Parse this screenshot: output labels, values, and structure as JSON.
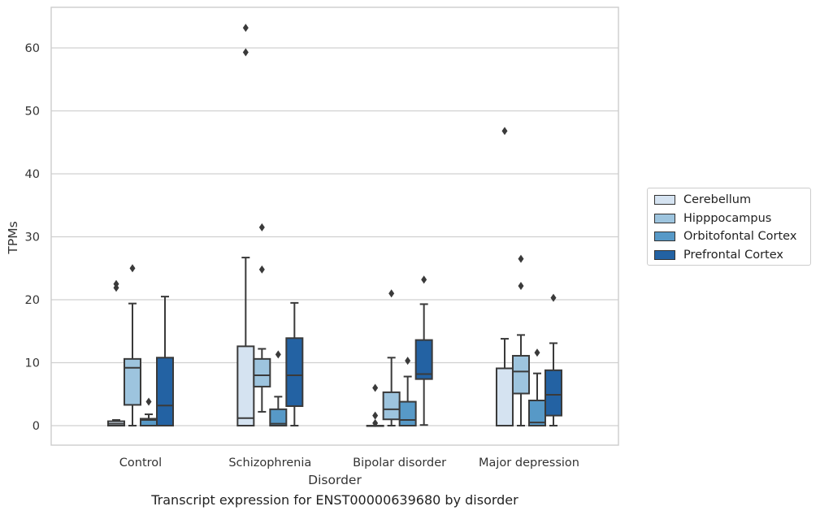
{
  "caption": "Transcript expression for ENST00000639680 by disorder",
  "chart_data": {
    "type": "box",
    "title": "",
    "xlabel": "Disorder",
    "ylabel": "TPMs",
    "ylim": [
      -3,
      66
    ],
    "yticks": [
      0,
      10,
      20,
      30,
      40,
      50,
      60
    ],
    "grid": "horizontal",
    "legend_position": "right",
    "categories": [
      "Control",
      "Schizophrenia",
      "Bipolar disorder",
      "Major depression"
    ],
    "series": [
      {
        "name": "Cerebellum",
        "color": "#d5e3f1",
        "boxes": [
          {
            "whislo": 0,
            "q1": 0,
            "med": 0.3,
            "q3": 0.7,
            "whishi": 0.9,
            "fliers": [
              21.9,
              22.5
            ]
          },
          {
            "whislo": 0,
            "q1": 0,
            "med": 1.2,
            "q3": 12.6,
            "whishi": 26.7,
            "fliers": [
              59.3,
              63.2
            ]
          },
          {
            "whislo": 0,
            "q1": 0,
            "med": 0,
            "q3": 0,
            "whishi": 0,
            "fliers": [
              0.4,
              1.6,
              6.0
            ]
          },
          {
            "whislo": 0,
            "q1": 0,
            "med": 0,
            "q3": 9.1,
            "whishi": 13.8,
            "fliers": [
              46.8
            ]
          }
        ]
      },
      {
        "name": "Hipppocampus",
        "color": "#9dc4de",
        "boxes": [
          {
            "whislo": 0,
            "q1": 3.3,
            "med": 9.2,
            "q3": 10.6,
            "whishi": 19.4,
            "fliers": [
              25.0
            ]
          },
          {
            "whislo": 2.2,
            "q1": 6.2,
            "med": 8.0,
            "q3": 10.6,
            "whishi": 12.2,
            "fliers": [
              24.8,
              31.5
            ]
          },
          {
            "whislo": 0,
            "q1": 1.0,
            "med": 2.6,
            "q3": 5.3,
            "whishi": 10.8,
            "fliers": [
              21.0
            ]
          },
          {
            "whislo": 0,
            "q1": 5.1,
            "med": 8.6,
            "q3": 11.1,
            "whishi": 14.4,
            "fliers": [
              22.2,
              26.5
            ]
          }
        ]
      },
      {
        "name": "Orbitofontal Cortex",
        "color": "#5799c7",
        "boxes": [
          {
            "whislo": 0,
            "q1": 0,
            "med": 0.9,
            "q3": 1.1,
            "whishi": 1.8,
            "fliers": [
              3.8
            ]
          },
          {
            "whislo": 0,
            "q1": 0,
            "med": 0.3,
            "q3": 2.6,
            "whishi": 4.6,
            "fliers": [
              11.3
            ]
          },
          {
            "whislo": 0,
            "q1": 0,
            "med": 0.9,
            "q3": 3.8,
            "whishi": 7.8,
            "fliers": [
              10.3
            ]
          },
          {
            "whislo": 0,
            "q1": 0,
            "med": 0.5,
            "q3": 4.0,
            "whishi": 8.3,
            "fliers": [
              11.6
            ]
          }
        ]
      },
      {
        "name": "Prefrontal Cortex",
        "color": "#2362a3",
        "boxes": [
          {
            "whislo": 0,
            "q1": 0,
            "med": 3.2,
            "q3": 10.8,
            "whishi": 20.5,
            "fliers": []
          },
          {
            "whislo": 0,
            "q1": 3.1,
            "med": 8.0,
            "q3": 13.9,
            "whishi": 19.5,
            "fliers": []
          },
          {
            "whislo": 0.1,
            "q1": 7.4,
            "med": 8.2,
            "q3": 13.6,
            "whishi": 19.3,
            "fliers": [
              23.2
            ]
          },
          {
            "whislo": 0,
            "q1": 1.6,
            "med": 4.9,
            "q3": 8.8,
            "whishi": 13.1,
            "fliers": [
              20.3
            ]
          }
        ]
      }
    ]
  }
}
